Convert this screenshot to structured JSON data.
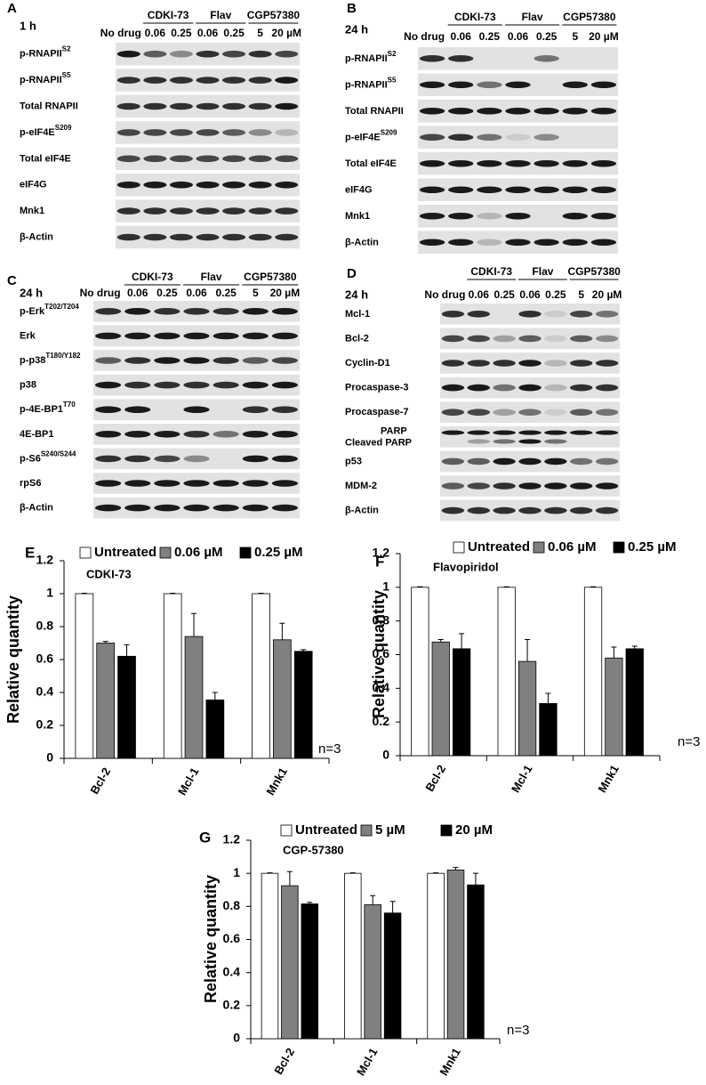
{
  "blots": [
    {
      "label": "A",
      "time": "1 h",
      "no_drug": "No drug",
      "groups": [
        {
          "name": "CDKI-73",
          "lanes": [
            "0.06",
            "0.25"
          ]
        },
        {
          "name": "Flav",
          "lanes": [
            "0.06",
            "0.25"
          ]
        },
        {
          "name": "CGP57380",
          "lanes": [
            "5",
            "20 µM"
          ]
        }
      ],
      "rows": [
        {
          "name": "p-RNAPII",
          "sup": "S2"
        },
        {
          "name": "p-RNAPII",
          "sup": "S5"
        },
        {
          "name": "Total RNAPII"
        },
        {
          "name": "p-eIF4E",
          "sup": "S209"
        },
        {
          "name": "Total eIF4E"
        },
        {
          "name": "eIF4G"
        },
        {
          "name": "Mnk1"
        },
        {
          "name": "β-Actin"
        }
      ]
    },
    {
      "label": "B",
      "time": "24 h",
      "no_drug": "No drug",
      "groups": [
        {
          "name": "CDKI-73",
          "lanes": [
            "0.06",
            "0.25"
          ]
        },
        {
          "name": "Flav",
          "lanes": [
            "0.06",
            "0.25"
          ]
        },
        {
          "name": "CGP57380",
          "lanes": [
            "5",
            "20 µM"
          ]
        }
      ],
      "rows": [
        {
          "name": "p-RNAPII",
          "sup": "S2"
        },
        {
          "name": "p-RNAPII",
          "sup": "S5"
        },
        {
          "name": "Total RNAPII"
        },
        {
          "name": "p-eIF4E",
          "sup": "S209"
        },
        {
          "name": "Total eIF4E"
        },
        {
          "name": "eIF4G"
        },
        {
          "name": "Mnk1"
        },
        {
          "name": "β-Actin"
        }
      ]
    },
    {
      "label": "C",
      "time": "24 h",
      "no_drug": "No drug",
      "groups": [
        {
          "name": "CDKI-73",
          "lanes": [
            "0.06",
            "0.25"
          ]
        },
        {
          "name": "Flav",
          "lanes": [
            "0.06",
            "0.25"
          ]
        },
        {
          "name": "CGP57380",
          "lanes": [
            "5",
            "20 µM"
          ]
        }
      ],
      "rows": [
        {
          "name": "p-Erk",
          "sup": "T202/T204"
        },
        {
          "name": "Erk"
        },
        {
          "name": "p-p38",
          "sup": "T180/Y182"
        },
        {
          "name": "p38"
        },
        {
          "name": "p-4E-BP1",
          "sup": "T70"
        },
        {
          "name": "4E-BP1"
        },
        {
          "name": "p-S6",
          "sup": "S240/S244"
        },
        {
          "name": "rpS6"
        },
        {
          "name": "β-Actin"
        }
      ]
    },
    {
      "label": "D",
      "time": "24 h",
      "no_drug": "No drug",
      "groups": [
        {
          "name": "CDKI-73",
          "lanes": [
            "0.06",
            "0.25"
          ]
        },
        {
          "name": "Flav",
          "lanes": [
            "0.06",
            "0.25"
          ]
        },
        {
          "name": "CGP57380",
          "lanes": [
            "5",
            "20 µM"
          ]
        }
      ],
      "rows": [
        {
          "name": "Mcl-1"
        },
        {
          "name": "Bcl-2"
        },
        {
          "name": "Cyclin-D1"
        },
        {
          "name": "Procaspase-3"
        },
        {
          "name": "Procaspase-7"
        },
        {
          "name": "PARP",
          "name2": "Cleaved PARP"
        },
        {
          "name": "p53"
        },
        {
          "name": "MDM-2"
        },
        {
          "name": "β-Actin"
        }
      ]
    }
  ],
  "chart_data": [
    {
      "type": "bar",
      "panel": "E",
      "title": "CDKI-73",
      "ylabel": "Relative quantity",
      "annotation": "n=3",
      "categories": [
        "Bcl-2",
        "Mcl-1",
        "Mnk1"
      ],
      "series": [
        {
          "name": "Untreated",
          "color": "#ffffff",
          "values": [
            1,
            1,
            1
          ],
          "errors": [
            0.003,
            0.003,
            0.003
          ]
        },
        {
          "name": "0.06 µM",
          "color": "#808080",
          "values": [
            0.7,
            0.74,
            0.72
          ],
          "errors": [
            0.01,
            0.14,
            0.1
          ]
        },
        {
          "name": "0.25 µM",
          "color": "#000000",
          "values": [
            0.62,
            0.355,
            0.65
          ],
          "errors": [
            0.07,
            0.045,
            0.01
          ]
        }
      ],
      "ylim": [
        0,
        1.2
      ],
      "yticks": [
        0,
        0.2,
        0.4,
        0.6,
        0.8,
        1,
        1.2
      ]
    },
    {
      "type": "bar",
      "panel": "F",
      "title": "Flavopiridol",
      "ylabel": "Relative quantity",
      "annotation": "n=3",
      "categories": [
        "Bcl-2",
        "Mcl-1",
        "Mnk1"
      ],
      "series": [
        {
          "name": "Untreated",
          "color": "#ffffff",
          "values": [
            1,
            1,
            1
          ],
          "errors": [
            0.003,
            0.003,
            0.003
          ]
        },
        {
          "name": "0.06 µM",
          "color": "#808080",
          "values": [
            0.675,
            0.56,
            0.58
          ],
          "errors": [
            0.015,
            0.13,
            0.065
          ]
        },
        {
          "name": "0.25 µM",
          "color": "#000000",
          "values": [
            0.635,
            0.31,
            0.635
          ],
          "errors": [
            0.09,
            0.06,
            0.015
          ]
        }
      ],
      "ylim": [
        0,
        1.2
      ],
      "yticks": [
        0,
        0.2,
        0.4,
        0.6,
        0.8,
        1,
        1.2
      ]
    },
    {
      "type": "bar",
      "panel": "G",
      "title": "CGP-57380",
      "ylabel": "Relative quantity",
      "annotation": "n=3",
      "categories": [
        "Bcl-2",
        "Mcl-1",
        "Mnk1"
      ],
      "series": [
        {
          "name": "Untreated",
          "color": "#ffffff",
          "values": [
            1,
            1,
            1
          ],
          "errors": [
            0.003,
            0.003,
            0.003
          ]
        },
        {
          "name": "5 µM",
          "color": "#808080",
          "values": [
            0.925,
            0.81,
            1.02
          ],
          "errors": [
            0.085,
            0.055,
            0.015
          ]
        },
        {
          "name": "20 µM",
          "color": "#000000",
          "values": [
            0.815,
            0.76,
            0.93
          ],
          "errors": [
            0.01,
            0.07,
            0.07
          ]
        }
      ],
      "ylim": [
        0,
        1.2
      ],
      "yticks": [
        0,
        0.2,
        0.4,
        0.6,
        0.8,
        1,
        1.2
      ]
    }
  ]
}
